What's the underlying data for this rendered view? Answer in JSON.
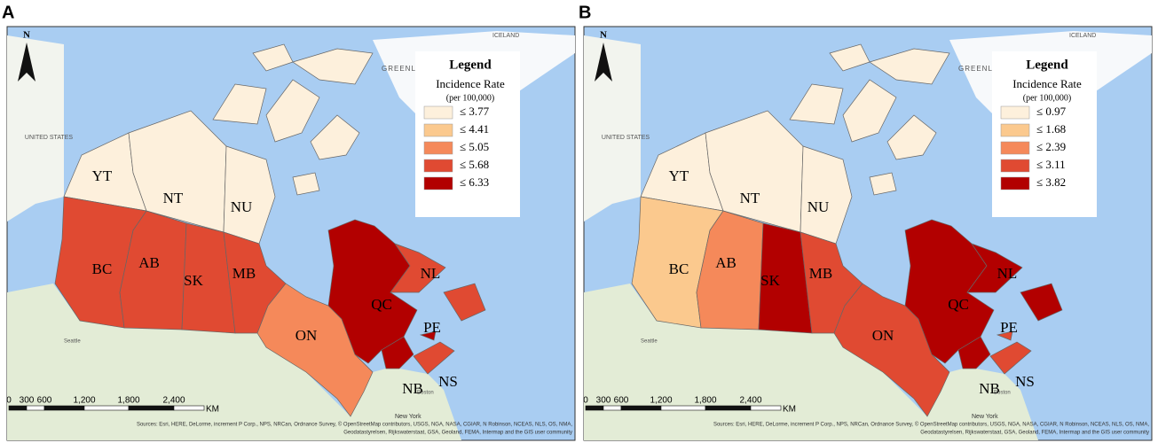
{
  "panels": [
    {
      "label": "A",
      "legend": {
        "title": "Legend",
        "subtitle": "Incidence Rate",
        "unit": "(per 100,000)",
        "classes": [
          {
            "label": "≤ 3.77",
            "color": "#fdf0dc"
          },
          {
            "label": "≤ 4.41",
            "color": "#fbc98e"
          },
          {
            "label": "≤ 5.05",
            "color": "#f5895a"
          },
          {
            "label": "≤ 5.68",
            "color": "#e04a32"
          },
          {
            "label": "≤ 6.33",
            "color": "#b20000"
          }
        ]
      },
      "provinces": [
        {
          "code": "YT",
          "class": 0
        },
        {
          "code": "NT",
          "class": 0
        },
        {
          "code": "NU",
          "class": 0
        },
        {
          "code": "BC",
          "class": 3
        },
        {
          "code": "AB",
          "class": 3
        },
        {
          "code": "SK",
          "class": 3
        },
        {
          "code": "MB",
          "class": 3
        },
        {
          "code": "ON",
          "class": 2
        },
        {
          "code": "QC",
          "class": 4
        },
        {
          "code": "NL",
          "class": 3
        },
        {
          "code": "NB",
          "class": 4
        },
        {
          "code": "PE",
          "class": 4
        },
        {
          "code": "NS",
          "class": 3
        }
      ]
    },
    {
      "label": "B",
      "legend": {
        "title": "Legend",
        "subtitle": "Incidence Rate",
        "unit": "(per 100,000)",
        "classes": [
          {
            "label": "≤ 0.97",
            "color": "#fdf0dc"
          },
          {
            "label": "≤ 1.68",
            "color": "#fbc98e"
          },
          {
            "label": "≤ 2.39",
            "color": "#f5895a"
          },
          {
            "label": "≤ 3.11",
            "color": "#e04a32"
          },
          {
            "label": "≤ 3.82",
            "color": "#b20000"
          }
        ]
      },
      "provinces": [
        {
          "code": "YT",
          "class": 0
        },
        {
          "code": "NT",
          "class": 0
        },
        {
          "code": "NU",
          "class": 0
        },
        {
          "code": "BC",
          "class": 1
        },
        {
          "code": "AB",
          "class": 2
        },
        {
          "code": "SK",
          "class": 4
        },
        {
          "code": "MB",
          "class": 3
        },
        {
          "code": "ON",
          "class": 3
        },
        {
          "code": "QC",
          "class": 4
        },
        {
          "code": "NL",
          "class": 4
        },
        {
          "code": "NB",
          "class": 4
        },
        {
          "code": "PE",
          "class": 3
        },
        {
          "code": "NS",
          "class": 3
        }
      ]
    }
  ],
  "map_labels": {
    "north": "N",
    "greenland": "GREENLAND",
    "iceland": "ICELAND",
    "united_states": "UNITED STATES",
    "seattle": "Seattle",
    "boston": "Boston",
    "new_york": "New York"
  },
  "scale_bar": {
    "ticks": [
      "0",
      "300",
      "600",
      "1,200",
      "1,800",
      "2,400"
    ],
    "unit": "KM"
  },
  "attribution": [
    "Sources: Esri, HERE, DeLorme, increment P Corp., NPS, NRCan, Ordnance Survey, © OpenStreetMap contributors, USGS, NGA, NASA, CGIAR, N Robinson, NCEAS, NLS, OS, NMA,",
    "Geodatastyrelsen, Rijkswaterstaat, GSA, Geoland, FEMA, Intermap and the GIS user community"
  ]
}
